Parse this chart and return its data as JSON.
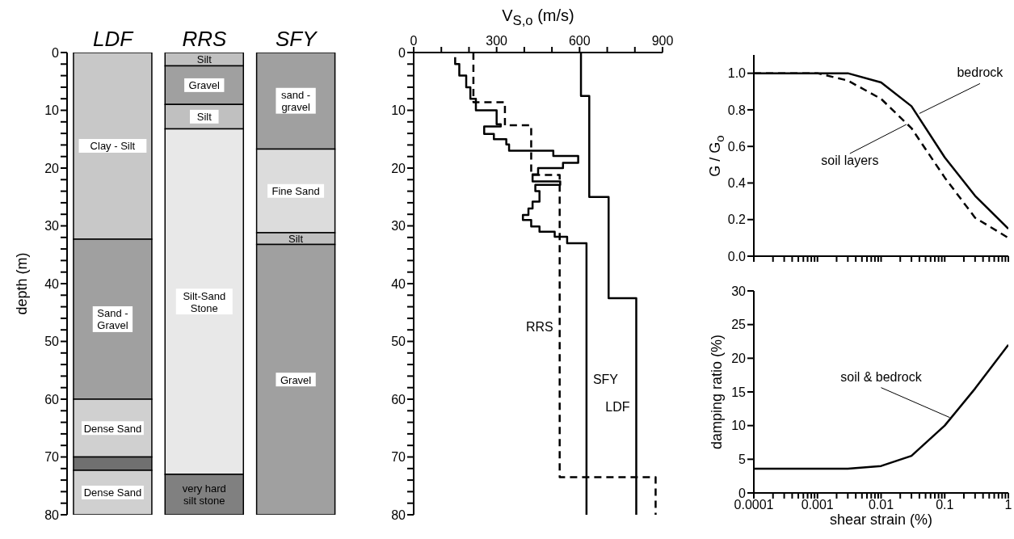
{
  "chart_data": [
    {
      "type": "bar",
      "stacked": true,
      "ylabel": "depth (m)",
      "categories": [
        "LDF",
        "RRS",
        "SFY"
      ],
      "ylim": [
        80,
        0
      ],
      "yticks": [
        0,
        {
          "value": 2,
          "label": null
        },
        {
          "value": 4,
          "label": null
        },
        {
          "value": 6,
          "label": null
        },
        {
          "value": 8,
          "label": null
        },
        10,
        {
          "value": 12,
          "label": null
        },
        {
          "value": 14,
          "label": null
        },
        {
          "value": 16,
          "label": null
        },
        {
          "value": 18,
          "label": null
        },
        20,
        {
          "value": 22,
          "label": null
        },
        {
          "value": 24,
          "label": null
        },
        {
          "value": 26,
          "label": null
        },
        {
          "value": 28,
          "label": null
        },
        30,
        {
          "value": 32,
          "label": null
        },
        {
          "value": 34,
          "label": null
        },
        {
          "value": 36,
          "label": null
        },
        {
          "value": 38,
          "label": null
        },
        40,
        {
          "value": 42,
          "label": null
        },
        {
          "value": 44,
          "label": null
        },
        {
          "value": 46,
          "label": null
        },
        {
          "value": 48,
          "label": null
        },
        50,
        {
          "value": 52,
          "label": null
        },
        {
          "value": 54,
          "label": null
        },
        {
          "value": 56,
          "label": null
        },
        {
          "value": 58,
          "label": null
        },
        60,
        {
          "value": 62,
          "label": null
        },
        {
          "value": 64,
          "label": null
        },
        {
          "value": 66,
          "label": null
        },
        {
          "value": 68,
          "label": null
        },
        70,
        {
          "value": 72,
          "label": null
        },
        {
          "value": 74,
          "label": null
        },
        {
          "value": 76,
          "label": null
        },
        {
          "value": 78,
          "label": null
        },
        80
      ],
      "series": [
        {
          "values": [
            32.3,
            2.3,
            16.7
          ],
          "colors": [
            "#c8c8c8",
            "#c0c0c0",
            "#a0a0a0"
          ],
          "value_labels": [
            "Clay - Silt",
            "Silt",
            "sand - gravel"
          ]
        },
        {
          "values": [
            27.7,
            6.7,
            14.5
          ],
          "colors": [
            "#a0a0a0",
            "#a0a0a0",
            "#dcdcdc"
          ],
          "value_labels": [
            "Sand - Gravel",
            "Gravel",
            "Fine Sand"
          ]
        },
        {
          "values": [
            10,
            4.2,
            2
          ],
          "colors": [
            "#d0d0d0",
            "#c0c0c0",
            "#c0c0c0"
          ],
          "value_labels": [
            "Dense Sand",
            "Silt",
            "Silt"
          ]
        },
        {
          "values": [
            2.3,
            59.8,
            46.8
          ],
          "colors": [
            "#707070",
            "#e8e8e8",
            "#a0a0a0"
          ],
          "value_labels": [
            null,
            "Silt-Sand Stone",
            "Gravel"
          ]
        },
        {
          "values": [
            7.7,
            7,
            null
          ],
          "colors": [
            "#d0d0d0",
            "#808080",
            null
          ],
          "value_labels": [
            "Dense Sand",
            "very hard silt stone",
            null
          ]
        }
      ]
    },
    {
      "type": "line",
      "xlabel": "V$_{S,o}$ (m/s)",
      "xlim": [
        0,
        900
      ],
      "xticks": [
        0,
        {
          "value": 100,
          "label": null
        },
        {
          "value": 200,
          "label": null
        },
        300,
        {
          "value": 400,
          "label": null
        },
        {
          "value": 500,
          "label": null
        },
        600,
        {
          "value": 700,
          "label": null
        },
        {
          "value": 800,
          "label": null
        },
        900
      ],
      "ylim": [
        80,
        0
      ],
      "yticks": [
        0,
        {
          "value": 2,
          "label": null
        },
        {
          "value": 4,
          "label": null
        },
        {
          "value": 6,
          "label": null
        },
        {
          "value": 8,
          "label": null
        },
        10,
        {
          "value": 12,
          "label": null
        },
        {
          "value": 14,
          "label": null
        },
        {
          "value": 16,
          "label": null
        },
        {
          "value": 18,
          "label": null
        },
        20,
        {
          "value": 22,
          "label": null
        },
        {
          "value": 24,
          "label": null
        },
        {
          "value": 26,
          "label": null
        },
        {
          "value": 28,
          "label": null
        },
        30,
        {
          "value": 32,
          "label": null
        },
        {
          "value": 34,
          "label": null
        },
        {
          "value": 36,
          "label": null
        },
        {
          "value": 38,
          "label": null
        },
        40,
        {
          "value": 42,
          "label": null
        },
        {
          "value": 44,
          "label": null
        },
        {
          "value": 46,
          "label": null
        },
        {
          "value": 48,
          "label": null
        },
        50,
        {
          "value": 52,
          "label": null
        },
        {
          "value": 54,
          "label": null
        },
        {
          "value": 56,
          "label": null
        },
        {
          "value": 58,
          "label": null
        },
        60,
        {
          "value": 62,
          "label": null
        },
        {
          "value": 64,
          "label": null
        },
        {
          "value": 66,
          "label": null
        },
        {
          "value": 68,
          "label": null
        },
        70,
        {
          "value": 72,
          "label": null
        },
        {
          "value": 74,
          "label": null
        },
        {
          "value": 76,
          "label": null
        },
        {
          "value": 78,
          "label": null
        },
        80
      ],
      "series": [
        {
          "name": "LDF",
          "color": "#000000",
          "line_style": "solid",
          "x": [
            605,
            605,
            635,
            635,
            705,
            705,
            805,
            805
          ],
          "values": [
            0,
            7.5,
            7.5,
            25,
            25,
            42.5,
            42.5,
            80
          ]
        },
        {
          "name": "RRS",
          "color": "#000000",
          "line_style": "dashed",
          "x": [
            216,
            216,
            330,
            330,
            425,
            425,
            528,
            528,
            875,
            875
          ],
          "values": [
            0,
            8.6,
            8.6,
            12.6,
            12.6,
            21.2,
            21.2,
            73.5,
            73.5,
            80
          ]
        },
        {
          "name": "SFY",
          "color": "#000000",
          "line_style": "solid",
          "x": [
            150,
            150,
            165,
            165,
            190,
            190,
            205,
            205,
            225,
            225,
            300,
            300,
            315,
            315,
            255,
            255,
            290,
            290,
            335,
            335,
            345,
            345,
            505,
            505,
            595,
            595,
            540,
            540,
            450,
            450,
            430,
            430,
            530,
            530,
            440,
            440,
            455,
            455,
            430,
            430,
            415,
            415,
            395,
            395,
            425,
            425,
            455,
            455,
            510,
            510,
            555,
            555,
            625,
            625
          ],
          "values": [
            0.8,
            2,
            2,
            4,
            4,
            6,
            6,
            8,
            8,
            10,
            10,
            12.4,
            12.4,
            12.8,
            12.8,
            14.1,
            14.1,
            15,
            15,
            15.9,
            15.9,
            17,
            17,
            17.9,
            17.9,
            19.1,
            19.1,
            20,
            20,
            21.1,
            21.1,
            22.3,
            22.3,
            22.9,
            22.9,
            24,
            24,
            25.8,
            25.8,
            27,
            27,
            28.1,
            28.1,
            29,
            29,
            30.1,
            30.1,
            31,
            31,
            31.9,
            31.9,
            33,
            33,
            80
          ]
        }
      ]
    },
    {
      "type": "line",
      "ylabel": "G / G$_{o}$",
      "log": "x",
      "tick_labels": "y",
      "xlim": [
        0.0001,
        1
      ],
      "xticks": [
        0.0001,
        {
          "value": 0.0002,
          "label": null
        },
        {
          "value": 0.0003,
          "label": null
        },
        {
          "value": 0.0004,
          "label": null
        },
        {
          "value": 0.0005,
          "label": null
        },
        {
          "value": 0.0006,
          "label": null
        },
        {
          "value": 0.0007,
          "label": null
        },
        {
          "value": 0.0008,
          "label": null
        },
        {
          "value": 0.0009,
          "label": null
        },
        0.001,
        {
          "value": 0.002,
          "label": null
        },
        {
          "value": 0.003,
          "label": null
        },
        {
          "value": 0.004,
          "label": null
        },
        {
          "value": 0.005,
          "label": null
        },
        {
          "value": 0.006,
          "label": null
        },
        {
          "value": 0.007,
          "label": null
        },
        {
          "value": 0.008,
          "label": null
        },
        {
          "value": 0.009,
          "label": null
        },
        0.01,
        {
          "value": 0.02,
          "label": null
        },
        {
          "value": 0.03,
          "label": null
        },
        {
          "value": 0.04,
          "label": null
        },
        {
          "value": 0.05,
          "label": null
        },
        {
          "value": 0.06,
          "label": null
        },
        {
          "value": 0.07,
          "label": null
        },
        {
          "value": 0.08,
          "label": null
        },
        {
          "value": 0.09,
          "label": null
        },
        0.1,
        {
          "value": 0.2,
          "label": null
        },
        {
          "value": 0.3,
          "label": null
        },
        {
          "value": 0.4,
          "label": null
        },
        {
          "value": 0.5,
          "label": null
        },
        {
          "value": 0.6,
          "label": null
        },
        {
          "value": 0.7,
          "label": null
        },
        {
          "value": 0.8,
          "label": null
        },
        {
          "value": 0.9,
          "label": null
        },
        1
      ],
      "ylim": [
        0,
        1.1
      ],
      "yticks": [
        {
          "value": 0,
          "label": "0.0"
        },
        0.2,
        0.4,
        0.6,
        0.8,
        {
          "value": 1,
          "label": "1.0"
        }
      ],
      "series": [
        {
          "color": "#000000",
          "line_style": "solid",
          "x": [
            0.0001,
            0.001,
            0.003,
            0.01,
            0.03,
            0.1,
            0.3,
            1
          ],
          "values": [
            1,
            1,
            1,
            0.95,
            0.82,
            0.54,
            0.33,
            0.15
          ]
        },
        {
          "color": "#000000",
          "line_style": "dashed",
          "x": [
            0.0001,
            0.001,
            0.003,
            0.01,
            0.03,
            0.1,
            0.3,
            1
          ],
          "values": [
            1,
            1,
            0.96,
            0.86,
            0.7,
            0.43,
            0.21,
            0.1
          ]
        }
      ],
      "annotations": [
        {
          "text": "bedrock",
          "x": 0.04,
          "y": 0.78
        },
        {
          "text": "soil layers",
          "x": 0.025,
          "y": 0.72
        }
      ]
    },
    {
      "type": "line",
      "xlabel": "shear strain (%)",
      "ylabel": "damping ratio (%)",
      "log": "x",
      "xlim": [
        0.0001,
        1
      ],
      "xticks": [
        0.0001,
        {
          "value": 0.0002,
          "label": null
        },
        {
          "value": 0.0003,
          "label": null
        },
        {
          "value": 0.0004,
          "label": null
        },
        {
          "value": 0.0005,
          "label": null
        },
        {
          "value": 0.0006,
          "label": null
        },
        {
          "value": 0.0007,
          "label": null
        },
        {
          "value": 0.0008,
          "label": null
        },
        {
          "value": 0.0009,
          "label": null
        },
        0.001,
        {
          "value": 0.002,
          "label": null
        },
        {
          "value": 0.003,
          "label": null
        },
        {
          "value": 0.004,
          "label": null
        },
        {
          "value": 0.005,
          "label": null
        },
        {
          "value": 0.006,
          "label": null
        },
        {
          "value": 0.007,
          "label": null
        },
        {
          "value": 0.008,
          "label": null
        },
        {
          "value": 0.009,
          "label": null
        },
        0.01,
        {
          "value": 0.02,
          "label": null
        },
        {
          "value": 0.03,
          "label": null
        },
        {
          "value": 0.04,
          "label": null
        },
        {
          "value": 0.05,
          "label": null
        },
        {
          "value": 0.06,
          "label": null
        },
        {
          "value": 0.07,
          "label": null
        },
        {
          "value": 0.08,
          "label": null
        },
        {
          "value": 0.09,
          "label": null
        },
        0.1,
        {
          "value": 0.2,
          "label": null
        },
        {
          "value": 0.3,
          "label": null
        },
        {
          "value": 0.4,
          "label": null
        },
        {
          "value": 0.5,
          "label": null
        },
        {
          "value": 0.6,
          "label": null
        },
        {
          "value": 0.7,
          "label": null
        },
        {
          "value": 0.8,
          "label": null
        },
        {
          "value": 0.9,
          "label": null
        },
        1
      ],
      "ylim": [
        0,
        30
      ],
      "yticks": [
        0,
        5,
        10,
        15,
        20,
        25,
        30
      ],
      "series": [
        {
          "color": "#000000",
          "line_style": "solid",
          "x": [
            0.0001,
            0.001,
            0.003,
            0.01,
            0.03,
            0.1,
            0.3,
            1
          ],
          "values": [
            3.6,
            3.6,
            3.6,
            4,
            5.5,
            10,
            15.5,
            22
          ]
        }
      ],
      "annotations": [
        {
          "text": "soil & bedrock",
          "x": 0.12,
          "y": 11.2
        }
      ]
    }
  ]
}
